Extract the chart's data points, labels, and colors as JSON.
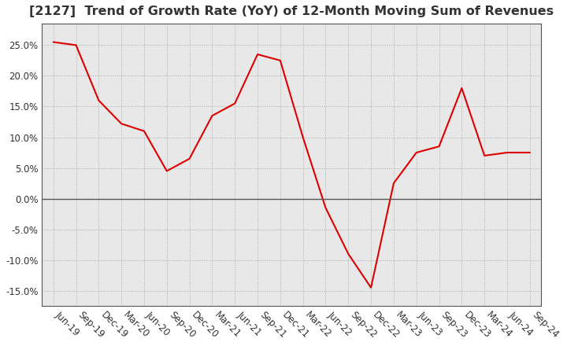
{
  "title": "[2127]  Trend of Growth Rate (YoY) of 12-Month Moving Sum of Revenues",
  "x_labels": [
    "Jun-19",
    "Sep-19",
    "Dec-19",
    "Mar-20",
    "Jun-20",
    "Sep-20",
    "Dec-20",
    "Mar-21",
    "Jun-21",
    "Sep-21",
    "Dec-21",
    "Mar-22",
    "Jun-22",
    "Sep-22",
    "Dec-22",
    "Mar-23",
    "Jun-23",
    "Sep-23",
    "Dec-23",
    "Mar-24",
    "Jun-24",
    "Sep-24"
  ],
  "y_values": [
    25.5,
    25.0,
    16.0,
    12.2,
    11.0,
    4.5,
    6.5,
    13.5,
    15.5,
    23.5,
    22.5,
    10.0,
    -1.5,
    -9.0,
    -14.5,
    2.5,
    7.5,
    8.5,
    18.0,
    7.0,
    7.5,
    7.5
  ],
  "line_color": "#dd0000",
  "line_width": 1.5,
  "ylim": [
    -17.5,
    28.5
  ],
  "yticks": [
    -15.0,
    -10.0,
    -5.0,
    0.0,
    5.0,
    10.0,
    15.0,
    20.0,
    25.0
  ],
  "ytick_labels": [
    "-15.0%",
    "-10.0%",
    "-5.0%",
    "0.0%",
    "5.0%",
    "10.0%",
    "15.0%",
    "20.0%",
    "25.0%"
  ],
  "background_color": "#ffffff",
  "plot_bg_color": "#e8e8e8",
  "grid_color": "#aaaaaa",
  "title_fontsize": 11.5,
  "tick_fontsize": 8.5,
  "zero_line_color": "#555555",
  "spine_color": "#555555"
}
